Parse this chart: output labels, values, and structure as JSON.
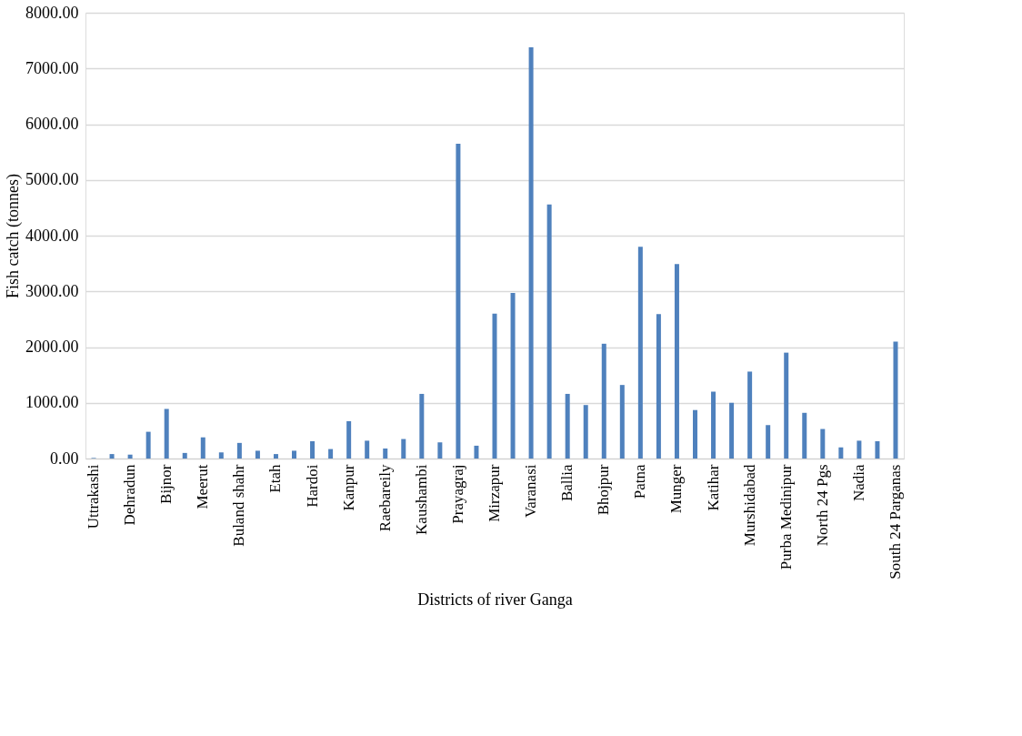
{
  "chart_data": {
    "type": "bar",
    "xlabel": "Districts of river Ganga",
    "ylabel": "Fish catch (tonnes)",
    "categories": [
      "Uttrakashi",
      null,
      "Dehradun",
      null,
      "Bijnor",
      null,
      "Meerut",
      null,
      "Buland shahr",
      null,
      "Etah",
      null,
      "Hardoi",
      null,
      "Kanpur",
      null,
      "Raebareily",
      null,
      "Kaushambi",
      null,
      "Prayagraj",
      null,
      "Mirzapur",
      null,
      "Varanasi",
      null,
      "Ballia",
      null,
      "Bhojpur",
      null,
      "Patna",
      null,
      "Munger",
      null,
      "Katihar",
      null,
      "Murshidabad",
      null,
      "Purba Medinipur",
      null,
      "North 24 Pgs",
      null,
      "Nadia",
      null,
      "South 24 Parganas"
    ],
    "values": [
      10,
      80,
      70,
      480,
      890,
      100,
      380,
      110,
      280,
      140,
      80,
      140,
      310,
      170,
      670,
      320,
      180,
      350,
      1160,
      290,
      5650,
      230,
      2600,
      2970,
      7380,
      4560,
      1160,
      960,
      2060,
      1320,
      3800,
      2590,
      3490,
      870,
      1200,
      1000,
      1560,
      600,
      1900,
      820,
      530,
      200,
      320,
      310,
      2100
    ],
    "color": "#4f81bd",
    "ylim": [
      0,
      8000
    ],
    "yticks": [
      {
        "value": 0,
        "label": "0.00"
      },
      {
        "value": 1000,
        "label": "1000.00"
      },
      {
        "value": 2000,
        "label": "2000.00"
      },
      {
        "value": 3000,
        "label": "3000.00"
      },
      {
        "value": 4000,
        "label": "4000.00"
      },
      {
        "value": 5000,
        "label": "5000.00"
      },
      {
        "value": 6000,
        "label": "6000.00"
      },
      {
        "value": 7000,
        "label": "7000.00"
      },
      {
        "value": 8000,
        "label": "8000.00"
      }
    ],
    "grid": "y"
  }
}
